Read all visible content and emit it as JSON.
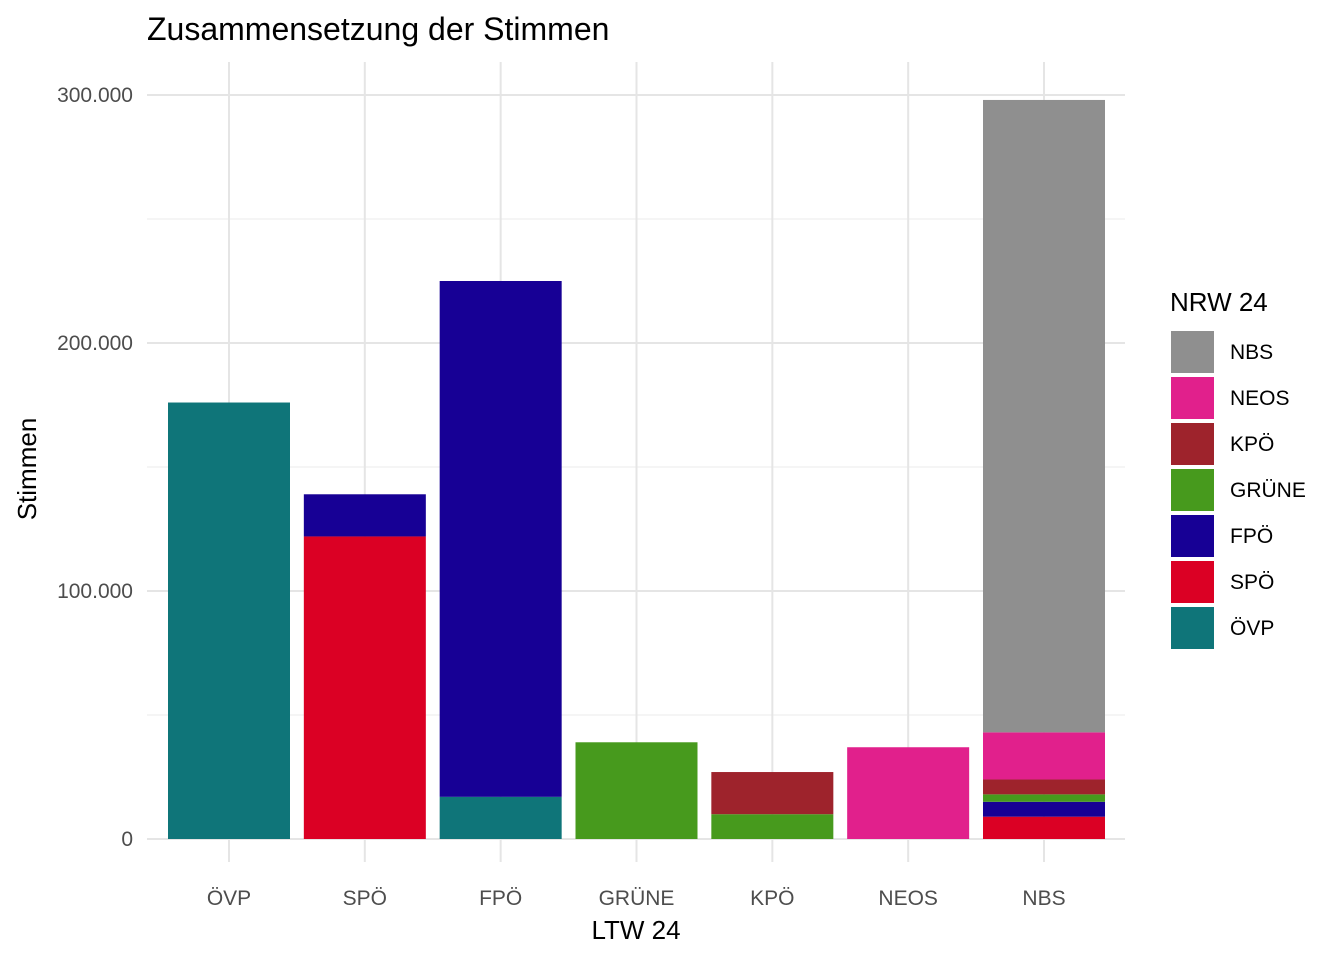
{
  "chart_data": {
    "type": "bar",
    "stacked": true,
    "title": "Zusammensetzung der Stimmen",
    "xlabel": "LTW 24",
    "ylabel": "Stimmen",
    "ylim": [
      0,
      310000
    ],
    "y_ticks": [
      0,
      100000,
      200000,
      300000
    ],
    "y_tick_labels": [
      "0",
      "100.000",
      "200.000",
      "300.000"
    ],
    "grid": true,
    "legend_position": "right",
    "legend_title": "NRW 24",
    "categories": [
      "ÖVP",
      "SPÖ",
      "FPÖ",
      "GRÜNE",
      "KPÖ",
      "NEOS",
      "NBS"
    ],
    "series": [
      {
        "name": "ÖVP",
        "color": "#0f7579",
        "values": [
          176000,
          0,
          17000,
          0,
          0,
          0,
          0
        ]
      },
      {
        "name": "SPÖ",
        "color": "#db0024",
        "values": [
          0,
          122000,
          0,
          0,
          0,
          0,
          9000
        ]
      },
      {
        "name": "FPÖ",
        "color": "#170095",
        "values": [
          0,
          17000,
          208000,
          0,
          0,
          0,
          6000
        ]
      },
      {
        "name": "GRÜNE",
        "color": "#479a1d",
        "values": [
          0,
          0,
          0,
          39000,
          10000,
          0,
          3000
        ]
      },
      {
        "name": "KPÖ",
        "color": "#9e232c",
        "values": [
          0,
          0,
          0,
          0,
          17000,
          0,
          6000
        ]
      },
      {
        "name": "NEOS",
        "color": "#e1208c",
        "values": [
          0,
          0,
          0,
          0,
          0,
          37000,
          19000
        ]
      },
      {
        "name": "NBS",
        "color": "#8f8f8f",
        "values": [
          0,
          0,
          0,
          0,
          0,
          0,
          255000
        ]
      }
    ],
    "legend_order": [
      "NBS",
      "NEOS",
      "KPÖ",
      "GRÜNE",
      "FPÖ",
      "SPÖ",
      "ÖVP"
    ]
  }
}
